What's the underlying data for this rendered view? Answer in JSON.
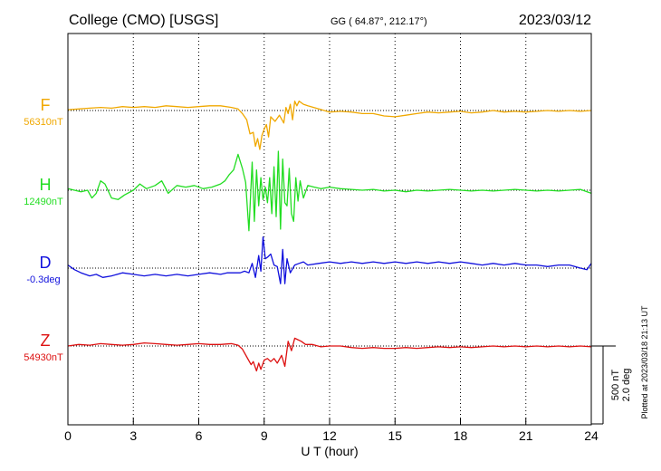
{
  "header": {
    "station": "College (CMO)  [USGS]",
    "coords": "GG ( 64.87°, 212.17°)",
    "date": "2023/03/12"
  },
  "footer": {
    "plotted": "Plotted at 2023/03/18 21:13 UT"
  },
  "scale": {
    "nT": "500 nT",
    "deg": "2.0 deg"
  },
  "chart_data": {
    "type": "line",
    "xlabel": "U T (hour)",
    "xlim": [
      0,
      24
    ],
    "xticks": [
      "0",
      "3",
      "6",
      "9",
      "12",
      "15",
      "18",
      "21",
      "24"
    ],
    "series": [
      {
        "name": "F",
        "baseline": "56310nT",
        "color": "#f0a800",
        "x": [
          0,
          0.5,
          1,
          1.5,
          2,
          2.5,
          3,
          3.5,
          4,
          4.5,
          5,
          5.5,
          6,
          6.5,
          7,
          7.5,
          7.8,
          8,
          8.2,
          8.35,
          8.5,
          8.6,
          8.7,
          8.8,
          8.9,
          9.0,
          9.1,
          9.2,
          9.3,
          9.5,
          9.7,
          9.9,
          10.0,
          10.1,
          10.2,
          10.3,
          10.4,
          10.5,
          10.6,
          10.8,
          11,
          11.5,
          12,
          12.5,
          13,
          13.5,
          14,
          14.5,
          15,
          15.5,
          16,
          16.5,
          17,
          17.5,
          18,
          18.5,
          19,
          19.5,
          20,
          20.5,
          21,
          21.5,
          22,
          22.5,
          23,
          23.5,
          24
        ],
        "values": [
          -5,
          -10,
          -15,
          -20,
          -15,
          -25,
          -20,
          -25,
          -20,
          -30,
          -25,
          -20,
          -25,
          -30,
          -30,
          -20,
          -10,
          20,
          60,
          150,
          140,
          230,
          180,
          250,
          160,
          120,
          90,
          170,
          40,
          70,
          30,
          80,
          -20,
          20,
          -40,
          60,
          -60,
          -30,
          -60,
          -40,
          -30,
          -10,
          10,
          5,
          10,
          20,
          20,
          35,
          40,
          30,
          20,
          10,
          15,
          10,
          5,
          15,
          10,
          0,
          10,
          5,
          10,
          5,
          0,
          5,
          0,
          5,
          0
        ]
      },
      {
        "name": "H",
        "baseline": "12490nT",
        "color": "#22dd22",
        "x": [
          0,
          0.3,
          0.6,
          0.9,
          1.1,
          1.3,
          1.5,
          1.7,
          2,
          2.3,
          2.6,
          3,
          3.3,
          3.6,
          4,
          4.3,
          4.6,
          5,
          5.4,
          5.8,
          6.2,
          6.6,
          7,
          7.2,
          7.4,
          7.6,
          7.8,
          8.0,
          8.15,
          8.3,
          8.45,
          8.55,
          8.65,
          8.75,
          8.85,
          8.95,
          9.05,
          9.15,
          9.25,
          9.35,
          9.45,
          9.55,
          9.65,
          9.75,
          9.85,
          9.95,
          10.05,
          10.15,
          10.25,
          10.35,
          10.45,
          10.55,
          10.65,
          10.8,
          11,
          11.3,
          11.6,
          12,
          12.5,
          13,
          13.5,
          14,
          14.5,
          15,
          15.5,
          16,
          16.5,
          17,
          17.5,
          18,
          18.5,
          19,
          19.5,
          20,
          20.5,
          21,
          21.5,
          22,
          22.5,
          23,
          23.5,
          24
        ],
        "values": [
          -10,
          0,
          10,
          0,
          50,
          20,
          -60,
          -40,
          50,
          60,
          30,
          0,
          -40,
          -10,
          -30,
          -60,
          20,
          -30,
          -20,
          -30,
          -10,
          -20,
          -40,
          -60,
          -100,
          -130,
          -230,
          -140,
          -50,
          260,
          -180,
          200,
          -130,
          100,
          -80,
          60,
          -20,
          80,
          -80,
          150,
          -150,
          170,
          -250,
          250,
          -200,
          80,
          100,
          -140,
          150,
          200,
          -80,
          70,
          -60,
          50,
          -30,
          -20,
          -10,
          -20,
          -10,
          -5,
          0,
          -5,
          5,
          0,
          10,
          0,
          5,
          0,
          -5,
          0,
          5,
          0,
          5,
          0,
          -5,
          0,
          5,
          0,
          5,
          0,
          -5,
          20
        ]
      },
      {
        "name": "D",
        "baseline": "-0.3deg",
        "color": "#1010dd",
        "x": [
          0,
          0.3,
          0.6,
          1,
          1.3,
          1.6,
          2,
          2.5,
          3,
          3.5,
          4,
          4.5,
          5,
          5.5,
          6,
          6.5,
          7,
          7.3,
          7.6,
          7.9,
          8.1,
          8.3,
          8.45,
          8.6,
          8.75,
          8.85,
          8.95,
          9.05,
          9.15,
          9.3,
          9.45,
          9.6,
          9.75,
          9.85,
          9.95,
          10.05,
          10.2,
          10.4,
          10.6,
          10.8,
          11,
          11.5,
          12,
          12.5,
          13,
          13.5,
          14,
          14.5,
          15,
          15.5,
          16,
          16.5,
          17,
          17.5,
          18,
          18.5,
          19,
          19.5,
          20,
          20.5,
          21,
          21.5,
          22,
          22.5,
          23,
          23.5,
          23.8,
          24
        ],
        "values": [
          -20,
          10,
          30,
          50,
          40,
          60,
          50,
          30,
          40,
          50,
          40,
          50,
          40,
          50,
          40,
          30,
          40,
          30,
          30,
          30,
          20,
          30,
          -30,
          60,
          -80,
          20,
          -200,
          -60,
          -70,
          -90,
          -20,
          -10,
          100,
          -120,
          100,
          -60,
          30,
          -20,
          -30,
          -40,
          -20,
          -30,
          -40,
          -30,
          -40,
          -30,
          -40,
          -30,
          -40,
          -30,
          -40,
          -30,
          -40,
          -30,
          -40,
          -30,
          -20,
          -30,
          -20,
          -30,
          -20,
          -20,
          -10,
          -20,
          -20,
          0,
          10,
          -30
        ]
      },
      {
        "name": "Z",
        "baseline": "54930nT",
        "color": "#dd1111",
        "x": [
          0,
          0.5,
          1,
          1.5,
          2,
          2.5,
          3,
          3.5,
          4,
          4.5,
          5,
          5.5,
          6,
          6.5,
          7,
          7.5,
          7.8,
          8.0,
          8.2,
          8.4,
          8.5,
          8.65,
          8.75,
          8.85,
          9.0,
          9.15,
          9.3,
          9.45,
          9.6,
          9.8,
          9.95,
          10.1,
          10.25,
          10.4,
          10.55,
          10.7,
          10.9,
          11.2,
          11.6,
          12,
          12.5,
          13,
          13.5,
          14,
          14.5,
          15,
          15.5,
          16,
          16.5,
          17,
          17.5,
          18,
          18.5,
          19,
          19.5,
          20,
          20.5,
          21,
          21.5,
          22,
          22.5,
          23,
          23.5,
          24
        ],
        "values": [
          0,
          -10,
          -5,
          -15,
          -10,
          -5,
          -10,
          -20,
          -15,
          -10,
          -5,
          -10,
          -15,
          -10,
          -10,
          -15,
          -5,
          20,
          70,
          120,
          100,
          160,
          110,
          150,
          90,
          80,
          100,
          80,
          110,
          60,
          130,
          -30,
          30,
          -50,
          -40,
          -30,
          -10,
          -10,
          5,
          0,
          0,
          10,
          15,
          10,
          15,
          15,
          10,
          15,
          10,
          5,
          10,
          5,
          10,
          5,
          0,
          5,
          0,
          5,
          0,
          5,
          0,
          5,
          0,
          5
        ]
      }
    ]
  }
}
